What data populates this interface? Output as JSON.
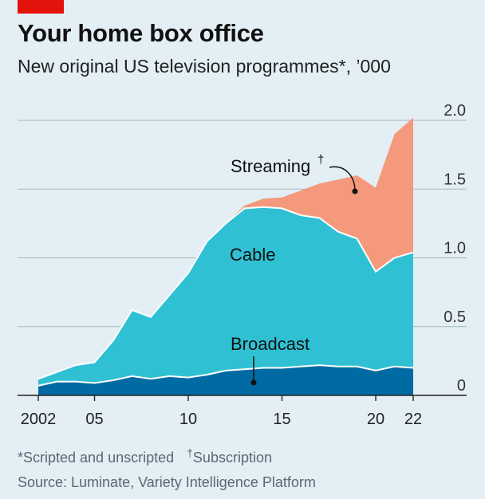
{
  "header": {
    "title": "Your home box office",
    "subtitle": "New original US television programmes*, ’000"
  },
  "footnotes": {
    "note1": "*Scripted and unscripted",
    "note2_mark": "†",
    "note2_text": "Subscription",
    "source": "Source: Luminate, Variety Intelligence Platform"
  },
  "colors": {
    "background": "#e3eef5",
    "accent_red": "#e3120b",
    "broadcast": "#006ba2",
    "cable": "#2fc1d3",
    "streaming": "#f4997b",
    "gridline": "#a9b6bf"
  },
  "chart_data": {
    "type": "area",
    "stacked": true,
    "x": [
      2002,
      2003,
      2004,
      2005,
      2006,
      2007,
      2008,
      2009,
      2010,
      2011,
      2012,
      2013,
      2014,
      2015,
      2016,
      2017,
      2018,
      2019,
      2020,
      2021,
      2022
    ],
    "x_tick_values": [
      2002,
      2005,
      2010,
      2015,
      2020,
      2022
    ],
    "x_tick_labels": [
      "2002",
      "05",
      "10",
      "15",
      "20",
      "22"
    ],
    "ylim": [
      0,
      2.0
    ],
    "y_ticks": [
      0,
      0.5,
      1.0,
      1.5,
      2.0
    ],
    "y_tick_labels": [
      "0",
      "0.5",
      "1.0",
      "1.5",
      "2.0"
    ],
    "grid": true,
    "y_axis_side": "right",
    "series": [
      {
        "name": "Broadcast",
        "values": [
          0.07,
          0.1,
          0.1,
          0.09,
          0.11,
          0.14,
          0.12,
          0.14,
          0.13,
          0.15,
          0.18,
          0.19,
          0.2,
          0.2,
          0.21,
          0.22,
          0.21,
          0.21,
          0.18,
          0.21,
          0.2
        ]
      },
      {
        "name": "Cable",
        "values": [
          0.05,
          0.07,
          0.12,
          0.15,
          0.29,
          0.48,
          0.45,
          0.59,
          0.76,
          0.97,
          1.07,
          1.17,
          1.17,
          1.16,
          1.1,
          1.07,
          0.98,
          0.93,
          0.72,
          0.79,
          0.84
        ]
      },
      {
        "name": "Streaming",
        "values": [
          0,
          0,
          0,
          0,
          0,
          0,
          0,
          0,
          0,
          0,
          0,
          0.02,
          0.06,
          0.08,
          0.18,
          0.25,
          0.38,
          0.46,
          0.61,
          0.9,
          0.98
        ]
      }
    ],
    "labels": {
      "streaming": "Streaming",
      "streaming_mark": "†",
      "cable": "Cable",
      "broadcast": "Broadcast"
    }
  }
}
